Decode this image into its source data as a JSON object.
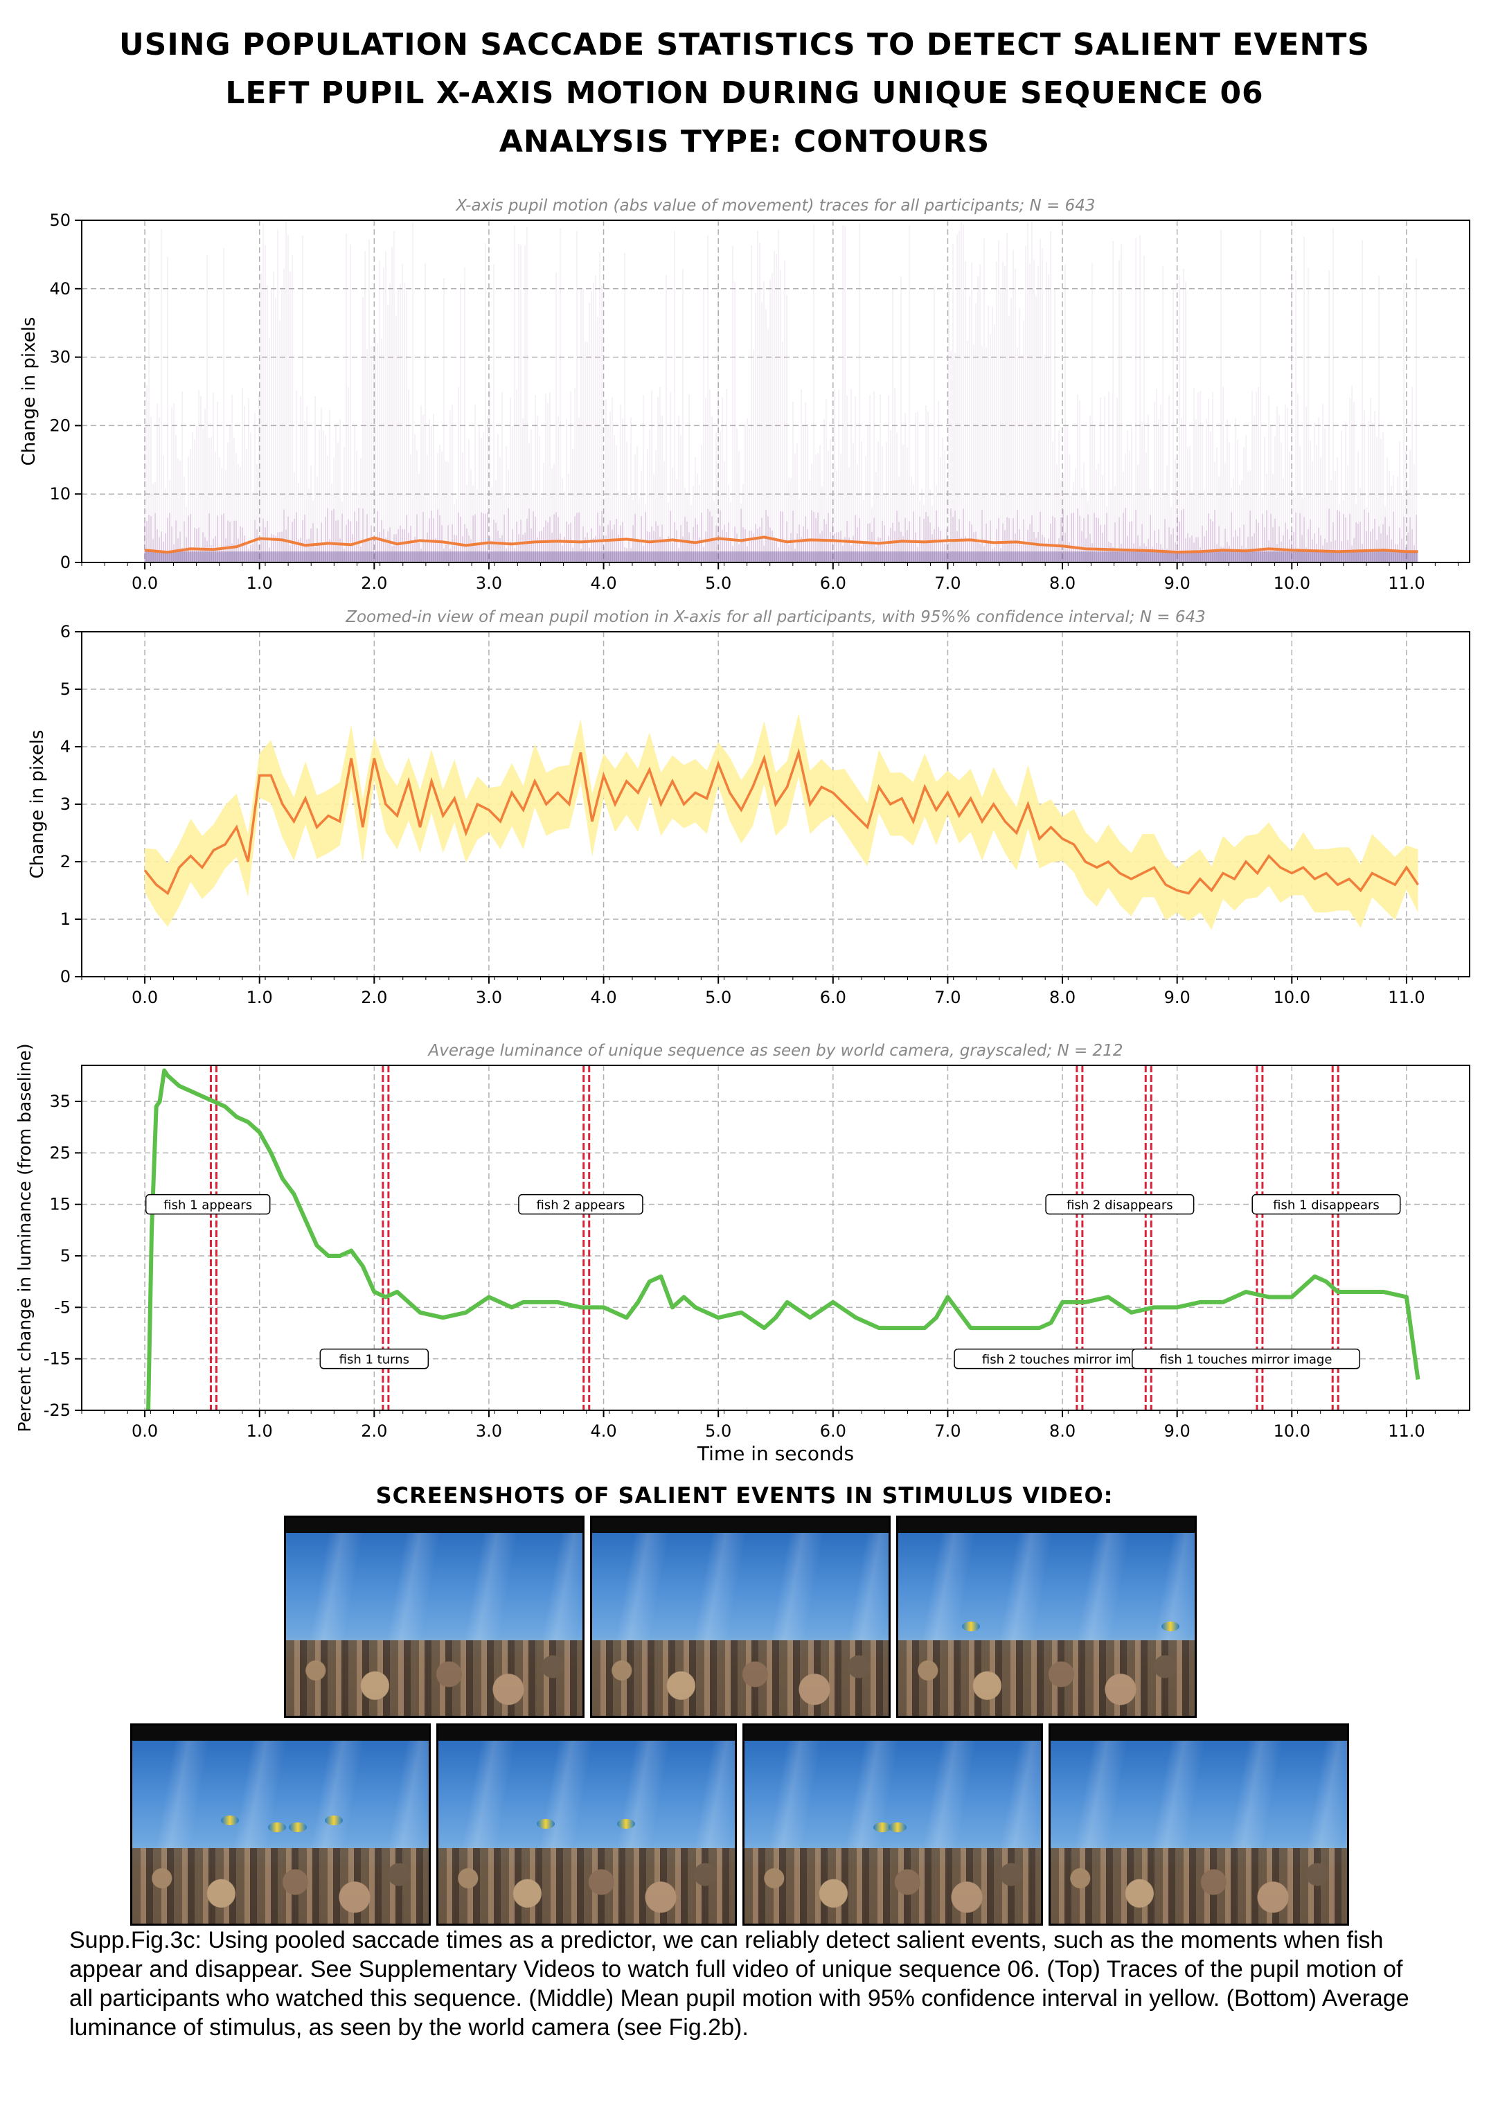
{
  "title": {
    "line1": "Using population saccade statistics to detect salient events",
    "line2": "Left pupil X-axis motion during unique sequence 06",
    "line3": "Analysis type: contours"
  },
  "chart_data": [
    {
      "type": "line",
      "title": "X-axis pupil motion (abs value of movement) traces for all participants; N = 643",
      "xlabel": "",
      "ylabel": "Change in pixels",
      "xlim": [
        -0.55,
        11.55
      ],
      "ylim": [
        0,
        50
      ],
      "xticks": [
        0,
        1,
        2,
        3,
        4,
        5,
        6,
        7,
        8,
        9,
        10,
        11
      ],
      "xtick_labels": [
        "0.0",
        "1.0",
        "2.0",
        "3.0",
        "4.0",
        "5.0",
        "6.0",
        "7.0",
        "8.0",
        "9.0",
        "10.0",
        "11.0"
      ],
      "yticks": [
        0,
        10,
        20,
        30,
        40,
        50
      ],
      "ytick_labels": [
        "0",
        "10",
        "20",
        "30",
        "40",
        "50"
      ],
      "grid": true,
      "series": [
        {
          "color": "#f07f3c",
          "x": [
            0,
            0.2,
            0.4,
            0.6,
            0.8,
            1.0,
            1.2,
            1.4,
            1.6,
            1.8,
            2.0,
            2.2,
            2.4,
            2.6,
            2.8,
            3.0,
            3.2,
            3.4,
            3.6,
            3.8,
            4.0,
            4.2,
            4.4,
            4.6,
            4.8,
            5.0,
            5.2,
            5.4,
            5.6,
            5.8,
            6.0,
            6.2,
            6.4,
            6.6,
            6.8,
            7.0,
            7.2,
            7.4,
            7.6,
            7.8,
            8.0,
            8.2,
            8.4,
            8.6,
            8.8,
            9.0,
            9.2,
            9.4,
            9.6,
            9.8,
            10.0,
            10.2,
            10.4,
            10.6,
            10.8,
            11.0,
            11.1
          ],
          "y": [
            1.8,
            1.5,
            2.0,
            1.9,
            2.3,
            3.5,
            3.3,
            2.5,
            2.8,
            2.6,
            3.6,
            2.7,
            3.2,
            3.0,
            2.5,
            2.9,
            2.7,
            3.0,
            3.1,
            3.0,
            3.2,
            3.4,
            3.0,
            3.3,
            2.9,
            3.5,
            3.2,
            3.7,
            3.0,
            3.3,
            3.2,
            3.0,
            2.8,
            3.1,
            3.0,
            3.2,
            3.3,
            2.9,
            3.0,
            2.6,
            2.4,
            2.0,
            1.9,
            1.8,
            1.7,
            1.5,
            1.6,
            1.8,
            1.7,
            2.0,
            1.8,
            1.7,
            1.6,
            1.7,
            1.8,
            1.6,
            1.6
          ]
        }
      ]
    },
    {
      "type": "area",
      "title": "Zoomed-in view of mean pupil motion in X-axis for all participants, with 95%% confidence interval; N = 643",
      "xlabel": "",
      "ylabel": "Change in pixels",
      "xlim": [
        -0.55,
        11.55
      ],
      "ylim": [
        0,
        6
      ],
      "xticks": [
        0,
        1,
        2,
        3,
        4,
        5,
        6,
        7,
        8,
        9,
        10,
        11
      ],
      "xtick_labels": [
        "0.0",
        "1.0",
        "2.0",
        "3.0",
        "4.0",
        "5.0",
        "6.0",
        "7.0",
        "8.0",
        "9.0",
        "10.0",
        "11.0"
      ],
      "yticks": [
        0,
        1,
        2,
        3,
        4,
        5,
        6
      ],
      "ytick_labels": [
        "0",
        "1",
        "2",
        "3",
        "4",
        "5",
        "6"
      ],
      "grid": true,
      "series": [
        {
          "color": "#f07f3c",
          "band_color": "#fff2a0",
          "x": [
            0,
            0.1,
            0.2,
            0.3,
            0.4,
            0.5,
            0.6,
            0.7,
            0.8,
            0.9,
            1.0,
            1.1,
            1.2,
            1.3,
            1.4,
            1.5,
            1.6,
            1.7,
            1.8,
            1.9,
            2.0,
            2.1,
            2.2,
            2.3,
            2.4,
            2.5,
            2.6,
            2.7,
            2.8,
            2.9,
            3.0,
            3.1,
            3.2,
            3.3,
            3.4,
            3.5,
            3.6,
            3.7,
            3.8,
            3.9,
            4.0,
            4.1,
            4.2,
            4.3,
            4.4,
            4.5,
            4.6,
            4.7,
            4.8,
            4.9,
            5.0,
            5.1,
            5.2,
            5.3,
            5.4,
            5.5,
            5.6,
            5.7,
            5.8,
            5.9,
            6.0,
            6.1,
            6.2,
            6.3,
            6.4,
            6.5,
            6.6,
            6.7,
            6.8,
            6.9,
            7.0,
            7.1,
            7.2,
            7.3,
            7.4,
            7.5,
            7.6,
            7.7,
            7.8,
            7.9,
            8.0,
            8.1,
            8.2,
            8.3,
            8.4,
            8.5,
            8.6,
            8.7,
            8.8,
            8.9,
            9.0,
            9.1,
            9.2,
            9.3,
            9.4,
            9.5,
            9.6,
            9.7,
            9.8,
            9.9,
            10.0,
            10.1,
            10.2,
            10.3,
            10.4,
            10.5,
            10.6,
            10.7,
            10.8,
            10.9,
            11.0,
            11.1
          ],
          "y": [
            1.85,
            1.6,
            1.45,
            1.9,
            2.1,
            1.9,
            2.2,
            2.3,
            2.6,
            2.0,
            3.5,
            3.5,
            3.0,
            2.7,
            3.1,
            2.6,
            2.8,
            2.7,
            3.8,
            2.6,
            3.8,
            3.0,
            2.8,
            3.4,
            2.6,
            3.4,
            2.8,
            3.1,
            2.5,
            3.0,
            2.9,
            2.7,
            3.2,
            2.9,
            3.4,
            3.0,
            3.2,
            3.0,
            3.9,
            2.7,
            3.5,
            3.0,
            3.4,
            3.2,
            3.6,
            3.0,
            3.4,
            3.0,
            3.2,
            3.1,
            3.7,
            3.2,
            2.9,
            3.3,
            3.8,
            3.0,
            3.3,
            3.9,
            3.0,
            3.3,
            3.2,
            3.0,
            2.8,
            2.6,
            3.3,
            3.0,
            3.1,
            2.7,
            3.3,
            2.9,
            3.2,
            2.8,
            3.1,
            2.7,
            3.0,
            2.7,
            2.5,
            3.0,
            2.4,
            2.6,
            2.4,
            2.3,
            2.0,
            1.9,
            2.0,
            1.8,
            1.7,
            1.8,
            1.9,
            1.6,
            1.5,
            1.45,
            1.7,
            1.5,
            1.8,
            1.7,
            2.0,
            1.8,
            2.1,
            1.9,
            1.8,
            1.9,
            1.7,
            1.8,
            1.6,
            1.7,
            1.5,
            1.8,
            1.7,
            1.6,
            1.9,
            1.6
          ],
          "ci_halfwidth": 0.55
        }
      ]
    },
    {
      "type": "line",
      "title": "Average luminance of unique sequence as seen by world camera, grayscaled; N = 212",
      "xlabel": "Time in seconds",
      "ylabel": "Percent change in luminance (from baseline)",
      "xlim": [
        -0.55,
        11.55
      ],
      "ylim": [
        -25,
        42
      ],
      "xticks": [
        0,
        1,
        2,
        3,
        4,
        5,
        6,
        7,
        8,
        9,
        10,
        11
      ],
      "xtick_labels": [
        "0.0",
        "1.0",
        "2.0",
        "3.0",
        "4.0",
        "5.0",
        "6.0",
        "7.0",
        "8.0",
        "9.0",
        "10.0",
        "11.0"
      ],
      "yticks": [
        -25,
        -15,
        -5,
        5,
        15,
        25,
        35
      ],
      "ytick_labels": [
        "-25",
        "-15",
        "-5",
        "5",
        "15",
        "25",
        "35"
      ],
      "grid": true,
      "series": [
        {
          "color": "#5bbf4a",
          "x": [
            0.03,
            0.06,
            0.1,
            0.13,
            0.17,
            0.2,
            0.3,
            0.4,
            0.5,
            0.6,
            0.7,
            0.8,
            0.9,
            1.0,
            1.1,
            1.2,
            1.3,
            1.4,
            1.5,
            1.6,
            1.7,
            1.8,
            1.9,
            2.0,
            2.1,
            2.2,
            2.3,
            2.4,
            2.6,
            2.8,
            3.0,
            3.2,
            3.3,
            3.4,
            3.6,
            3.8,
            4.0,
            4.2,
            4.3,
            4.4,
            4.5,
            4.6,
            4.7,
            4.8,
            5.0,
            5.2,
            5.4,
            5.5,
            5.6,
            5.8,
            6.0,
            6.2,
            6.4,
            6.6,
            6.8,
            6.9,
            7.0,
            7.2,
            7.4,
            7.6,
            7.8,
            7.9,
            8.0,
            8.2,
            8.4,
            8.6,
            8.8,
            9.0,
            9.2,
            9.4,
            9.6,
            9.8,
            10.0,
            10.1,
            10.2,
            10.3,
            10.4,
            10.6,
            10.8,
            11.0,
            11.1
          ],
          "y": [
            -25,
            10,
            34,
            35,
            41,
            40,
            38,
            37,
            36,
            35,
            34,
            32,
            31,
            29,
            25,
            20,
            17,
            12,
            7,
            5,
            5,
            6,
            3,
            -2,
            -3,
            -2,
            -4,
            -6,
            -7,
            -6,
            -3,
            -5,
            -4,
            -4,
            -4,
            -5,
            -5,
            -7,
            -4,
            0,
            1,
            -5,
            -3,
            -5,
            -7,
            -6,
            -9,
            -7,
            -4,
            -7,
            -4,
            -7,
            -9,
            -9,
            -9,
            -7,
            -3,
            -9,
            -9,
            -9,
            -9,
            -8,
            -4,
            -4,
            -3,
            -6,
            -5,
            -5,
            -4,
            -4,
            -2,
            -3,
            -3,
            -1,
            1,
            0,
            -2,
            -2,
            -2,
            -3,
            -19
          ]
        }
      ],
      "event_lines": [
        0.6,
        2.1,
        3.85,
        8.15,
        8.75,
        9.72,
        10.38
      ],
      "annotations": [
        {
          "text": "fish 1 appears",
          "x": 0.55,
          "y": 15
        },
        {
          "text": "fish 2 appears",
          "x": 3.8,
          "y": 15
        },
        {
          "text": "fish 2 disappears",
          "x": 8.5,
          "y": 15
        },
        {
          "text": "fish 1 disappears",
          "x": 10.3,
          "y": 15
        },
        {
          "text": "fish 1 turns",
          "x": 2.0,
          "y": -15
        },
        {
          "text": "fish 2 touches mirror image",
          "x": 8.05,
          "y": -15
        },
        {
          "text": "fish 1 touches mirror image",
          "x": 9.6,
          "y": -15
        }
      ]
    }
  ],
  "shots": {
    "title": "Screenshots of salient events in stimulus video:"
  },
  "caption": "Supp.Fig.3c: Using pooled saccade times as a predictor, we can reliably detect salient events, such as the moments when fish appear and disappear. See Supplementary Videos to watch full video of unique sequence 06. (Top) Traces of the pupil motion of all participants who watched this sequence. (Middle) Mean pupil motion with 95% confidence interval in yellow.  (Bottom) Average luminance of stimulus, as seen by the world camera (see Fig.2b).",
  "colors": {
    "accent_orange": "#f07f3c",
    "band_yellow": "#fff2a0",
    "trace_purple": "#8a3f9c",
    "lum_green": "#5bbf4a",
    "event_red": "#d8233a"
  }
}
